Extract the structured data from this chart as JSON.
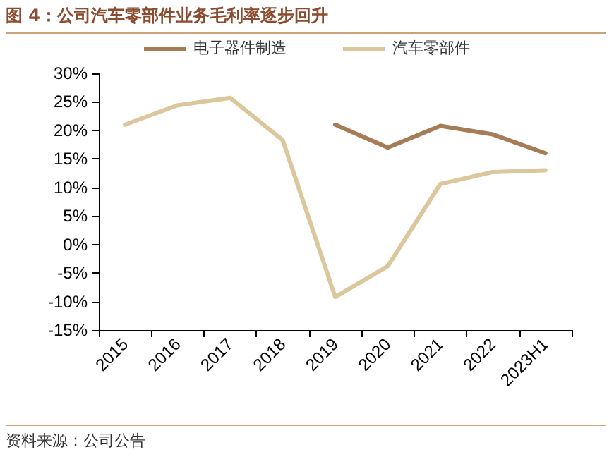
{
  "chart_data": {
    "type": "line",
    "title": "图 4：公司汽车零部件业务毛利率逐步回升",
    "annotations": [
      "资料来源：公司公告"
    ],
    "categories": [
      "2015",
      "2016",
      "2017",
      "2018",
      "2019",
      "2020",
      "2021",
      "2022",
      "2023H1"
    ],
    "series": [
      {
        "name": "电子器件制造",
        "color": "#a57c55",
        "values": [
          null,
          null,
          null,
          null,
          21.0,
          17.0,
          20.8,
          19.3,
          16.0
        ]
      },
      {
        "name": "汽车零部件",
        "color": "#dcc69c",
        "values": [
          21.0,
          24.4,
          25.7,
          18.3,
          -9.2,
          -3.8,
          10.6,
          12.7,
          13.0
        ]
      }
    ],
    "ylim": [
      -15,
      30
    ],
    "yticks": [
      {
        "value": -15,
        "label": "-15%"
      },
      {
        "value": -10,
        "label": "-10%"
      },
      {
        "value": -5,
        "label": "-5%"
      },
      {
        "value": 0,
        "label": "0%"
      },
      {
        "value": 5,
        "label": "5%"
      },
      {
        "value": 10,
        "label": "10%"
      },
      {
        "value": 15,
        "label": "15%"
      },
      {
        "value": 20,
        "label": "20%"
      },
      {
        "value": 25,
        "label": "25%"
      },
      {
        "value": 30,
        "label": "30%"
      }
    ],
    "legend": "top",
    "marker": "none",
    "line_style": "solid"
  }
}
